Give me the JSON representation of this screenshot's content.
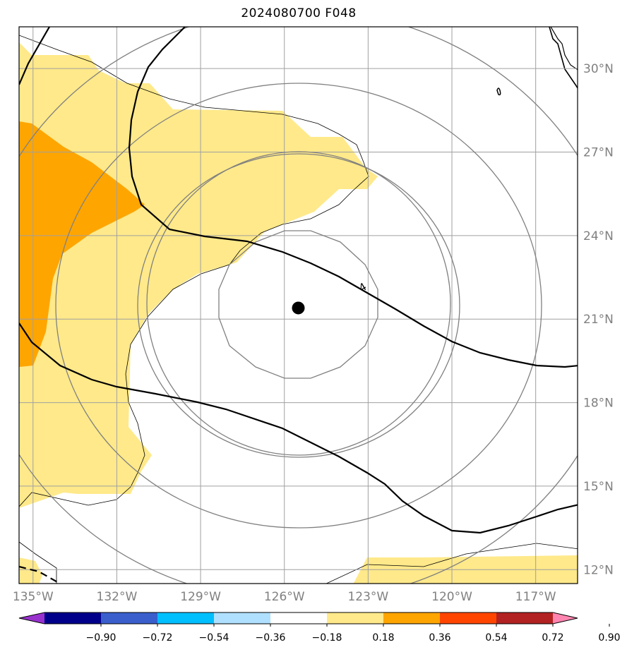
{
  "title": "2024080700 F048",
  "map": {
    "lon_range": [
      -135.5,
      -115.5
    ],
    "lat_range": [
      11.5,
      31.5
    ],
    "grid_color": "#a0a0a0",
    "lat_labels": [
      {
        "lat": 30,
        "text": "30°N"
      },
      {
        "lat": 27,
        "text": "27°N"
      },
      {
        "lat": 24,
        "text": "24°N"
      },
      {
        "lat": 21,
        "text": "21°N"
      },
      {
        "lat": 18,
        "text": "18°N"
      },
      {
        "lat": 15,
        "text": "15°N"
      },
      {
        "lat": 12,
        "text": "12°N"
      }
    ],
    "lon_labels": [
      {
        "lon": -135,
        "text": "135°W"
      },
      {
        "lon": -132,
        "text": "132°W"
      },
      {
        "lon": -129,
        "text": "129°W"
      },
      {
        "lon": -126,
        "text": "126°W"
      },
      {
        "lon": -123,
        "text": "123°W"
      },
      {
        "lon": -120,
        "text": "120°W"
      },
      {
        "lon": -117,
        "text": "117°W"
      }
    ],
    "center_marker": {
      "lon": -125.5,
      "lat": 21.4
    },
    "range_rings": "concentric gray rings around center",
    "contour_label": "4"
  },
  "colorbar": {
    "colors": [
      "#9932cc",
      "#00008b",
      "#3a5fcd",
      "#00bfff",
      "#b0e0ff",
      "#ffffff",
      "#ffe98a",
      "#ffa500",
      "#ff4500",
      "#b22222",
      "#ff85b0"
    ],
    "labels": [
      "−0.90",
      "−0.72",
      "−0.54",
      "−0.36",
      "−0.18",
      "0.18",
      "0.36",
      "0.54",
      "0.72",
      "0.90"
    ]
  },
  "fill_colors": {
    "light": "#ffe98a",
    "orange": "#ffa500"
  }
}
